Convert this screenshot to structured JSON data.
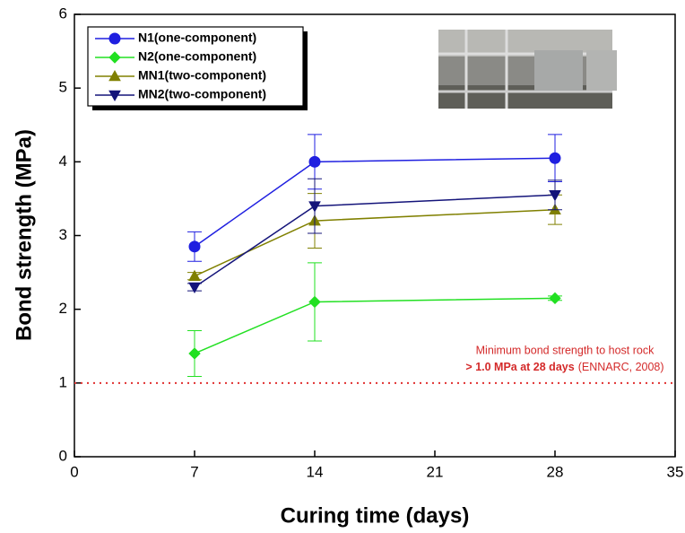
{
  "chart_data": {
    "type": "line",
    "x_label": "Curing time (days)",
    "y_label": "Bond strength (MPa)",
    "x": [
      7,
      14,
      28
    ],
    "series": [
      {
        "name": "N1(one-component)",
        "color": "#1f1fe0",
        "marker": "circle",
        "values": [
          2.85,
          4.0,
          4.05
        ],
        "errors": [
          0.2,
          0.37,
          0.32
        ]
      },
      {
        "name": "N2(one-component)",
        "color": "#22e022",
        "marker": "diamond",
        "values": [
          1.4,
          2.1,
          2.15
        ],
        "errors": [
          0.31,
          0.53,
          0.03
        ]
      },
      {
        "name": "MN1(two-component)",
        "color": "#808000",
        "marker": "triangle-up",
        "values": [
          2.45,
          3.2,
          3.35
        ],
        "errors": [
          0.05,
          0.37,
          0.2
        ]
      },
      {
        "name": "MN2(two-component)",
        "color": "#14147a",
        "marker": "triangle-down",
        "values": [
          2.3,
          3.4,
          3.55
        ],
        "errors": [
          0.05,
          0.37,
          0.2
        ]
      }
    ],
    "xlim": [
      0,
      35
    ],
    "xticks": [
      0,
      7,
      14,
      21,
      28,
      35
    ],
    "ylim": [
      0,
      6
    ],
    "yticks": [
      0,
      1,
      2,
      3,
      4,
      5,
      6
    ],
    "reference_line": {
      "value": 1,
      "color": "#e03030"
    },
    "annotations": [
      "Minimum bond strength to host rock",
      "> 1.0 MPa at 28 days",
      "(ENNARC, 2008)"
    ],
    "legend": "upper left"
  }
}
